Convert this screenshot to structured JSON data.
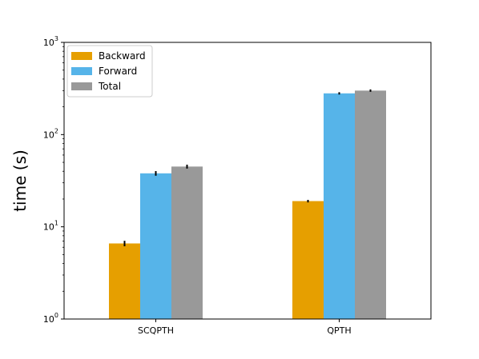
{
  "chart_data": {
    "type": "bar",
    "title": "",
    "xlabel": "",
    "ylabel": "time (s)",
    "yscale": "log",
    "ylim": [
      1,
      1000
    ],
    "grid": false,
    "legend_position": "top-left",
    "categories": [
      "SCQPTH",
      "QPTH"
    ],
    "y_ticks": [
      {
        "value": 1,
        "base": "10",
        "exp": "0"
      },
      {
        "value": 10,
        "base": "10",
        "exp": "1"
      },
      {
        "value": 100,
        "base": "10",
        "exp": "2"
      },
      {
        "value": 1000,
        "base": "10",
        "exp": "3"
      }
    ],
    "series": [
      {
        "name": "Backward",
        "color": "#E69F00",
        "values": [
          6.6,
          19.0
        ],
        "errors": [
          0.45,
          0.6
        ]
      },
      {
        "name": "Forward",
        "color": "#56B4E9",
        "values": [
          38.0,
          280.0
        ],
        "errors": [
          2.2,
          8.0
        ]
      },
      {
        "name": "Total",
        "color": "#999999",
        "values": [
          45.0,
          300.0
        ],
        "errors": [
          2.2,
          9.0
        ]
      }
    ]
  }
}
